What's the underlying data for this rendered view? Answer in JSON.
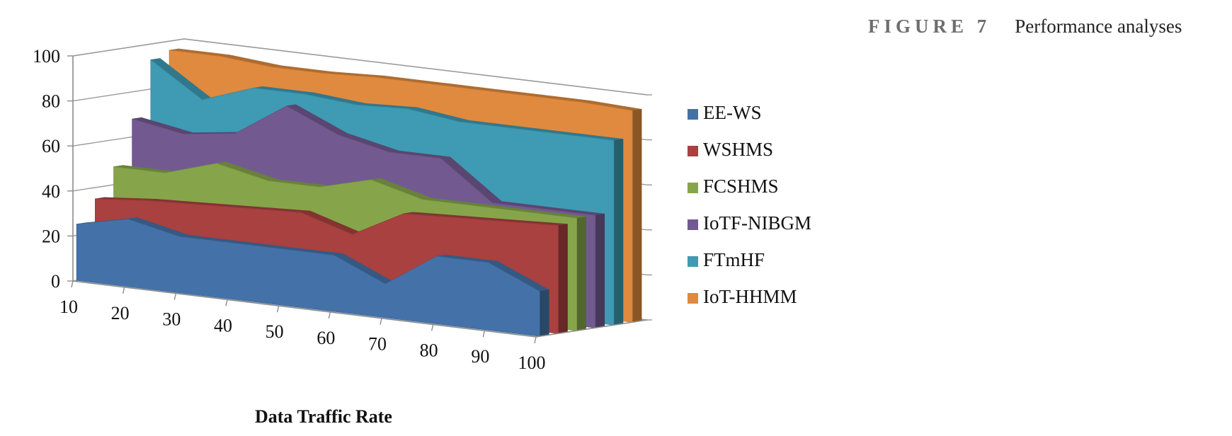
{
  "caption": {
    "figure_label": "FIGURE 7",
    "title": "Performance analyses"
  },
  "chart_data": {
    "type": "area",
    "style": "3d-stacked-depth",
    "categories": [
      10,
      20,
      30,
      40,
      50,
      60,
      70,
      80,
      90,
      100
    ],
    "xlabel": "Data Traffic Rate",
    "ylabel": "",
    "ylim": [
      0,
      100
    ],
    "yticks": [
      0,
      20,
      40,
      60,
      80,
      100
    ],
    "grid": true,
    "legend_position": "right",
    "series": [
      {
        "name": "EE-WS",
        "color": "#4472a8",
        "values": [
          25,
          30,
          25,
          25,
          25,
          25,
          15,
          30,
          30,
          20
        ]
      },
      {
        "name": "WSHMS",
        "color": "#a84140",
        "values": [
          35,
          37,
          38,
          39,
          40,
          33,
          45,
          46,
          47,
          48
        ]
      },
      {
        "name": "FCSHMS",
        "color": "#86a54a",
        "values": [
          48,
          48,
          55,
          50,
          50,
          56,
          50,
          50,
          50,
          50
        ]
      },
      {
        "name": "IoTF-NIBGM",
        "color": "#725a91",
        "values": [
          68,
          64,
          67,
          82,
          72,
          67,
          67,
          50,
          50,
          50
        ]
      },
      {
        "name": "FTmHF",
        "color": "#3f9ab3",
        "values": [
          93,
          78,
          86,
          86,
          84,
          85,
          82,
          82,
          82,
          82
        ]
      },
      {
        "name": "IoT-HHMM",
        "color": "#df8a3e",
        "values": [
          96,
          96,
          94,
          94,
          95,
          95,
          95,
          95,
          95,
          94
        ]
      }
    ]
  }
}
